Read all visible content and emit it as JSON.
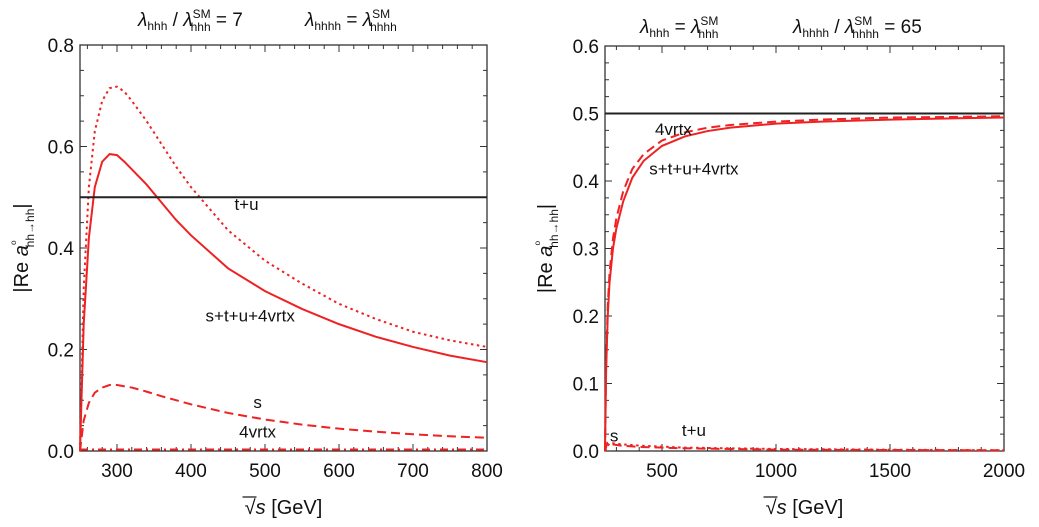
{
  "chart_data": [
    {
      "type": "line",
      "title_parts": {
        "left": {
          "lhs": "λ",
          "lhs_sub": "hhh",
          "sep": " / ",
          "rhs": "λ",
          "rhs_sub": "hhh",
          "rhs_sup": "SM",
          "tail": " = 7"
        },
        "right": {
          "lhs": "λ",
          "lhs_sub": "hhhh",
          "sep": " = ",
          "rhs": "λ",
          "rhs_sub": "hhhh",
          "rhs_sup": "SM",
          "tail": ""
        }
      },
      "xlabel": "√s [GeV]",
      "ylabel": "|Re a⁰hh→hh|",
      "xlim": [
        250,
        800
      ],
      "ylim": [
        0,
        0.8
      ],
      "xticks": [
        300,
        400,
        500,
        600,
        700,
        800
      ],
      "yticks": [
        0.0,
        0.2,
        0.4,
        0.6,
        0.8
      ],
      "ytick_labels": [
        "0.0",
        "0.2",
        "0.4",
        "0.6",
        "0.8"
      ],
      "grid": false,
      "series": [
        {
          "name": "s+t+u+4vrtx",
          "color": "#ee2222",
          "style": "solid",
          "x": [
            250,
            255,
            262,
            270,
            280,
            290,
            300,
            310,
            320,
            340,
            360,
            380,
            400,
            450,
            500,
            550,
            600,
            650,
            700,
            750,
            800
          ],
          "y": [
            0.0,
            0.25,
            0.42,
            0.52,
            0.57,
            0.585,
            0.583,
            0.57,
            0.555,
            0.525,
            0.49,
            0.455,
            0.425,
            0.36,
            0.315,
            0.28,
            0.25,
            0.225,
            0.205,
            0.188,
            0.175
          ]
        },
        {
          "name": "",
          "color": "#ee2222",
          "style": "dotted",
          "x": [
            250,
            255,
            262,
            270,
            280,
            290,
            300,
            310,
            320,
            340,
            360,
            380,
            400,
            450,
            500,
            550,
            600,
            650,
            700,
            750,
            800
          ],
          "y": [
            0.0,
            0.32,
            0.52,
            0.63,
            0.69,
            0.715,
            0.718,
            0.708,
            0.69,
            0.65,
            0.605,
            0.56,
            0.52,
            0.435,
            0.375,
            0.33,
            0.29,
            0.26,
            0.235,
            0.218,
            0.205
          ]
        },
        {
          "name": "s",
          "color": "#ee2222",
          "style": "dashed",
          "x": [
            250,
            255,
            262,
            270,
            280,
            290,
            300,
            320,
            340,
            360,
            400,
            450,
            500,
            550,
            600,
            650,
            700,
            750,
            800
          ],
          "y": [
            0.0,
            0.06,
            0.095,
            0.115,
            0.125,
            0.13,
            0.13,
            0.125,
            0.117,
            0.108,
            0.092,
            0.075,
            0.062,
            0.052,
            0.044,
            0.038,
            0.033,
            0.029,
            0.026
          ]
        },
        {
          "name": "4vrtx",
          "color": "#ee2222",
          "style": "dashdot",
          "x": [
            250,
            800
          ],
          "y": [
            0.003,
            0.003
          ]
        },
        {
          "name": "t+u",
          "color": "#222222",
          "style": "solid",
          "x": [
            250,
            800
          ],
          "y": [
            0.5,
            0.5
          ]
        }
      ],
      "annotations": [
        {
          "text": "t+u",
          "x": 475,
          "y": 0.475
        },
        {
          "text": "s+t+u+4vrtx",
          "x": 480,
          "y": 0.255
        },
        {
          "text": "s",
          "x": 490,
          "y": 0.085
        },
        {
          "text": "4vrtx",
          "x": 490,
          "y": 0.027
        }
      ]
    },
    {
      "type": "line",
      "title_parts": {
        "left": {
          "lhs": "λ",
          "lhs_sub": "hhh",
          "sep": " = ",
          "rhs": "λ",
          "rhs_sub": "hhh",
          "rhs_sup": "SM",
          "tail": ""
        },
        "right": {
          "lhs": "λ",
          "lhs_sub": "hhhh",
          "sep": " / ",
          "rhs": "λ",
          "rhs_sub": "hhhh",
          "rhs_sup": "SM",
          "tail": " = 65"
        }
      },
      "xlabel": "√s [GeV]",
      "ylabel": "|Re a⁰hh→hh|",
      "xlim": [
        250,
        2000
      ],
      "ylim": [
        0,
        0.6
      ],
      "xticks": [
        500,
        1000,
        1500,
        2000
      ],
      "yticks": [
        0.0,
        0.1,
        0.2,
        0.3,
        0.4,
        0.5,
        0.6
      ],
      "ytick_labels": [
        "0.0",
        "0.1",
        "0.2",
        "0.3",
        "0.4",
        "0.5",
        "0.6"
      ],
      "grid": false,
      "series": [
        {
          "name": "s+t+u+4vrtx",
          "color": "#ee2222",
          "style": "solid",
          "x": [
            250,
            255,
            262,
            270,
            285,
            300,
            330,
            370,
            420,
            500,
            600,
            700,
            800,
            1000,
            1200,
            1500,
            1800,
            2000
          ],
          "y": [
            0.0,
            0.12,
            0.2,
            0.25,
            0.3,
            0.33,
            0.37,
            0.405,
            0.43,
            0.452,
            0.466,
            0.474,
            0.479,
            0.485,
            0.488,
            0.491,
            0.493,
            0.494
          ]
        },
        {
          "name": "4vrtx",
          "color": "#ee2222",
          "style": "dashed",
          "x": [
            250,
            255,
            262,
            270,
            285,
            300,
            330,
            370,
            420,
            500,
            600,
            700,
            800,
            1000,
            1200,
            1500,
            1800,
            2000
          ],
          "y": [
            0.0,
            0.13,
            0.215,
            0.265,
            0.315,
            0.345,
            0.385,
            0.418,
            0.44,
            0.46,
            0.472,
            0.479,
            0.483,
            0.488,
            0.491,
            0.494,
            0.495,
            0.496
          ]
        },
        {
          "name": "s",
          "color": "#ee2222",
          "style": "dashed",
          "x": [
            250,
            260,
            280,
            320,
            400,
            600,
            1000,
            2000
          ],
          "y": [
            0.0,
            0.012,
            0.01,
            0.008,
            0.006,
            0.004,
            0.002,
            0.001
          ]
        },
        {
          "name": "t+u",
          "color": "#ee2222",
          "style": "dotted",
          "x": [
            250,
            270,
            320,
            400,
            600,
            1000,
            2000
          ],
          "y": [
            0.0,
            0.012,
            0.01,
            0.008,
            0.005,
            0.003,
            0.001
          ]
        },
        {
          "name": "",
          "color": "#222222",
          "style": "solid",
          "x": [
            250,
            2000
          ],
          "y": [
            0.5,
            0.5
          ]
        }
      ],
      "annotations": [
        {
          "text": "4vrtx",
          "x": 550,
          "y": 0.468
        },
        {
          "text": "s+t+u+4vrtx",
          "x": 640,
          "y": 0.41
        },
        {
          "text": "s",
          "x": 290,
          "y": 0.014
        },
        {
          "text": "t+u",
          "x": 640,
          "y": 0.022
        }
      ]
    }
  ]
}
